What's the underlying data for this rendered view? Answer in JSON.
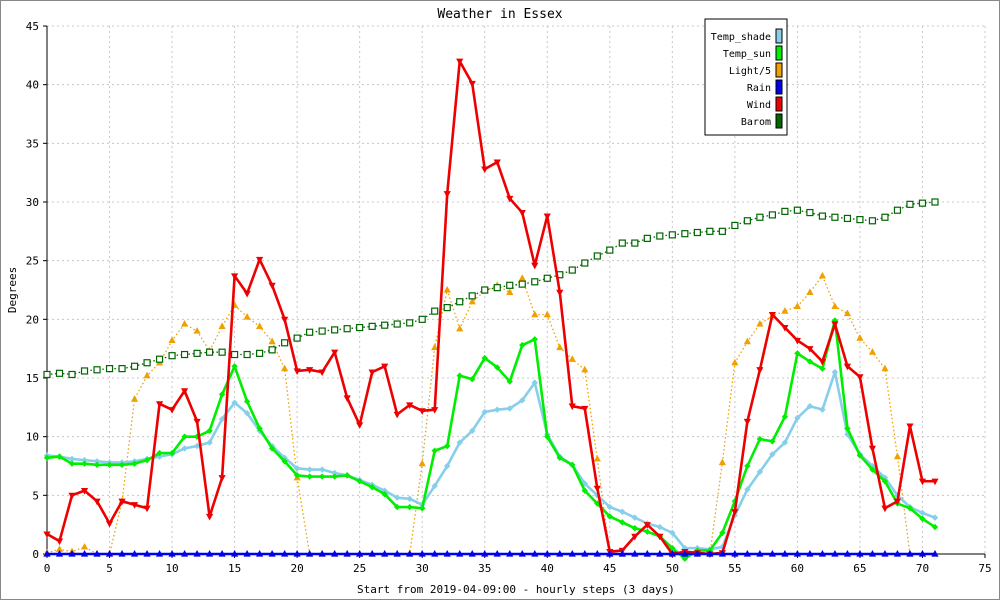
{
  "chart_data": {
    "type": "line",
    "title": "Weather in Essex",
    "xlabel": "Start from 2019-04-09:00 - hourly steps (3 days)",
    "ylabel": "Degrees",
    "xlim": [
      0,
      75
    ],
    "ylim": [
      0,
      45
    ],
    "xticks": [
      0,
      5,
      10,
      15,
      20,
      25,
      30,
      35,
      40,
      45,
      50,
      55,
      60,
      65,
      70,
      75
    ],
    "yticks": [
      0,
      5,
      10,
      15,
      20,
      25,
      30,
      35,
      40,
      45
    ],
    "grid": true,
    "legend_position": "top-right",
    "x": [
      0,
      1,
      2,
      3,
      4,
      5,
      6,
      7,
      8,
      9,
      10,
      11,
      12,
      13,
      14,
      15,
      16,
      17,
      18,
      19,
      20,
      21,
      22,
      23,
      24,
      25,
      26,
      27,
      28,
      29,
      30,
      31,
      32,
      33,
      34,
      35,
      36,
      37,
      38,
      39,
      40,
      41,
      42,
      43,
      44,
      45,
      46,
      47,
      48,
      49,
      50,
      51,
      52,
      53,
      54,
      55,
      56,
      57,
      58,
      59,
      60,
      61,
      62,
      63,
      64,
      65,
      66,
      67,
      68,
      69,
      70,
      71
    ],
    "series": [
      {
        "name": "Temp_shade",
        "color": "#87ceeb",
        "marker": "diamond",
        "dotted": false,
        "values": [
          8.4,
          8.3,
          8.1,
          8.0,
          7.9,
          7.8,
          7.8,
          7.9,
          8.1,
          8.3,
          8.5,
          9.0,
          9.2,
          9.5,
          11.5,
          12.9,
          12.0,
          10.5,
          9.2,
          8.2,
          7.3,
          7.2,
          7.2,
          6.9,
          6.7,
          6.3,
          5.9,
          5.4,
          4.8,
          4.7,
          4.2,
          5.8,
          7.5,
          9.5,
          10.5,
          12.1,
          12.3,
          12.4,
          13.1,
          14.6,
          10.2,
          8.3,
          7.6,
          6.0,
          5.0,
          4.0,
          3.6,
          3.1,
          2.6,
          2.3,
          1.8,
          0.5,
          0.5,
          0.4,
          0.6,
          3.3,
          5.5,
          7.0,
          8.5,
          9.5,
          11.6,
          12.6,
          12.3,
          15.5,
          10.2,
          8.5,
          7.5,
          6.5,
          5.0,
          4.0,
          3.5,
          3.1
        ]
      },
      {
        "name": "Temp_sun",
        "color": "#00ee00",
        "marker": "diamond",
        "dotted": false,
        "values": [
          8.2,
          8.3,
          7.7,
          7.7,
          7.6,
          7.6,
          7.6,
          7.7,
          8.0,
          8.6,
          8.6,
          10.0,
          10.0,
          10.5,
          13.6,
          16.0,
          13.0,
          10.7,
          9.0,
          7.9,
          6.7,
          6.6,
          6.6,
          6.6,
          6.7,
          6.2,
          5.7,
          5.1,
          4.0,
          4.0,
          3.9,
          8.8,
          9.2,
          15.2,
          14.9,
          16.7,
          15.9,
          14.7,
          17.8,
          18.3,
          10.0,
          8.2,
          7.6,
          5.4,
          4.3,
          3.2,
          2.7,
          2.2,
          1.9,
          1.5,
          0.5,
          -0.4,
          0.3,
          0.3,
          1.8,
          4.5,
          7.5,
          9.8,
          9.6,
          11.7,
          17.1,
          16.4,
          15.8,
          19.9,
          10.7,
          8.4,
          7.2,
          6.2,
          4.3,
          3.9,
          3.0,
          2.3
        ]
      },
      {
        "name": "Light/5",
        "color": "#f0a000",
        "marker": "triangle-up",
        "dotted": true,
        "values": [
          0.1,
          0.4,
          0.2,
          0.6,
          0.0,
          0.0,
          4.5,
          13.2,
          15.2,
          16.3,
          18.2,
          19.6,
          19.0,
          17.3,
          19.4,
          21.2,
          20.2,
          19.4,
          18.1,
          15.8,
          6.5,
          0.0,
          0.0,
          0.0,
          0.0,
          0.0,
          0.0,
          0.0,
          0.0,
          0.0,
          7.7,
          17.6,
          22.5,
          19.2,
          21.5,
          22.4,
          22.9,
          22.3,
          23.5,
          20.4,
          20.4,
          17.6,
          16.6,
          15.7,
          8.1,
          0.0,
          0.0,
          0.0,
          0.0,
          0.0,
          0.0,
          0.0,
          0.0,
          0.0,
          7.8,
          16.3,
          18.1,
          19.6,
          20.3,
          20.7,
          21.1,
          22.3,
          23.7,
          21.1,
          20.5,
          18.4,
          17.2,
          15.8,
          8.3,
          0.0,
          0.0,
          0.0
        ]
      },
      {
        "name": "Rain",
        "color": "#0000ee",
        "marker": "triangle-up",
        "dotted": false,
        "values": [
          0,
          0,
          0,
          0,
          0,
          0,
          0,
          0,
          0,
          0,
          0,
          0,
          0,
          0,
          0,
          0,
          0,
          0,
          0,
          0,
          0,
          0,
          0,
          0,
          0,
          0,
          0,
          0,
          0,
          0,
          0,
          0,
          0,
          0,
          0,
          0,
          0,
          0,
          0,
          0,
          0,
          0,
          0,
          0,
          0,
          0,
          0,
          0,
          0,
          0,
          0,
          0,
          0,
          0,
          0,
          0,
          0,
          0,
          0,
          0,
          0,
          0,
          0,
          0,
          0,
          0,
          0,
          0,
          0,
          0,
          0,
          0
        ]
      },
      {
        "name": "Wind",
        "color": "#ee0000",
        "marker": "triangle-down",
        "dotted": false,
        "values": [
          1.7,
          1.1,
          5.0,
          5.4,
          4.5,
          2.6,
          4.5,
          4.2,
          3.9,
          12.8,
          12.3,
          13.9,
          11.3,
          3.2,
          6.5,
          23.7,
          22.2,
          25.1,
          22.9,
          20.0,
          15.6,
          15.7,
          15.5,
          17.2,
          13.3,
          11.0,
          15.5,
          16.0,
          11.9,
          12.7,
          12.2,
          12.3,
          30.7,
          42.0,
          40.1,
          32.8,
          33.4,
          30.3,
          29.1,
          24.6,
          28.8,
          22.3,
          12.6,
          12.4,
          5.6,
          0.2,
          0.3,
          1.5,
          2.5,
          1.5,
          0.0,
          0.2,
          0.1,
          0.0,
          0.1,
          3.6,
          11.3,
          15.7,
          20.4,
          19.3,
          18.2,
          17.5,
          16.4,
          19.6,
          16.0,
          15.1,
          9.0,
          3.9,
          4.5,
          10.9,
          6.2,
          6.2
        ]
      },
      {
        "name": "Barom",
        "color": "#006600",
        "marker": "square",
        "dotted": true,
        "values": [
          15.3,
          15.4,
          15.3,
          15.6,
          15.7,
          15.8,
          15.8,
          16.0,
          16.3,
          16.6,
          16.9,
          17.0,
          17.1,
          17.2,
          17.2,
          17.0,
          17.0,
          17.1,
          17.4,
          18.0,
          18.4,
          18.9,
          19.0,
          19.1,
          19.2,
          19.3,
          19.4,
          19.5,
          19.6,
          19.7,
          20.0,
          20.7,
          21.0,
          21.5,
          22.0,
          22.5,
          22.7,
          22.9,
          23.0,
          23.2,
          23.5,
          23.8,
          24.2,
          24.8,
          25.4,
          25.9,
          26.5,
          26.5,
          26.9,
          27.1,
          27.2,
          27.3,
          27.4,
          27.5,
          27.5,
          28.0,
          28.4,
          28.7,
          28.9,
          29.2,
          29.3,
          29.1,
          28.8,
          28.7,
          28.6,
          28.5,
          28.4,
          28.7,
          29.3,
          29.8,
          29.9,
          30.0
        ]
      }
    ]
  }
}
